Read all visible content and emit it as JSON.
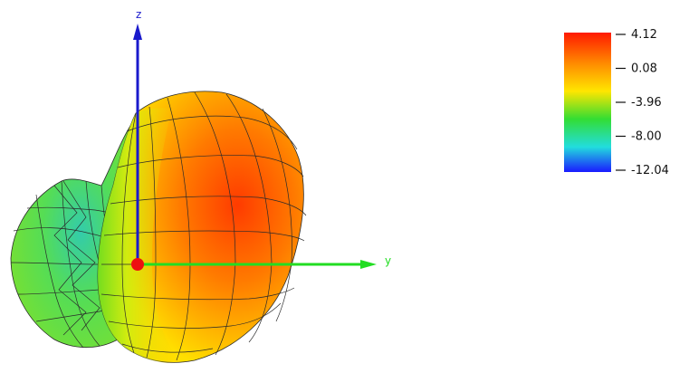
{
  "axes": {
    "z_label": "z",
    "y_label": "y",
    "z_color": "#1a1acc",
    "y_color": "#22dd22",
    "origin_color": "#ee1111"
  },
  "legend": {
    "ticks": [
      "4.12",
      "0.08",
      "-3.96",
      "-8.00",
      "-12.04"
    ],
    "max": 4.12,
    "min": -12.04
  },
  "colormap": {
    "stops": [
      "#ff1a00",
      "#ff8a00",
      "#ffe600",
      "#33dd33",
      "#22dddd",
      "#1a1aff"
    ]
  }
}
